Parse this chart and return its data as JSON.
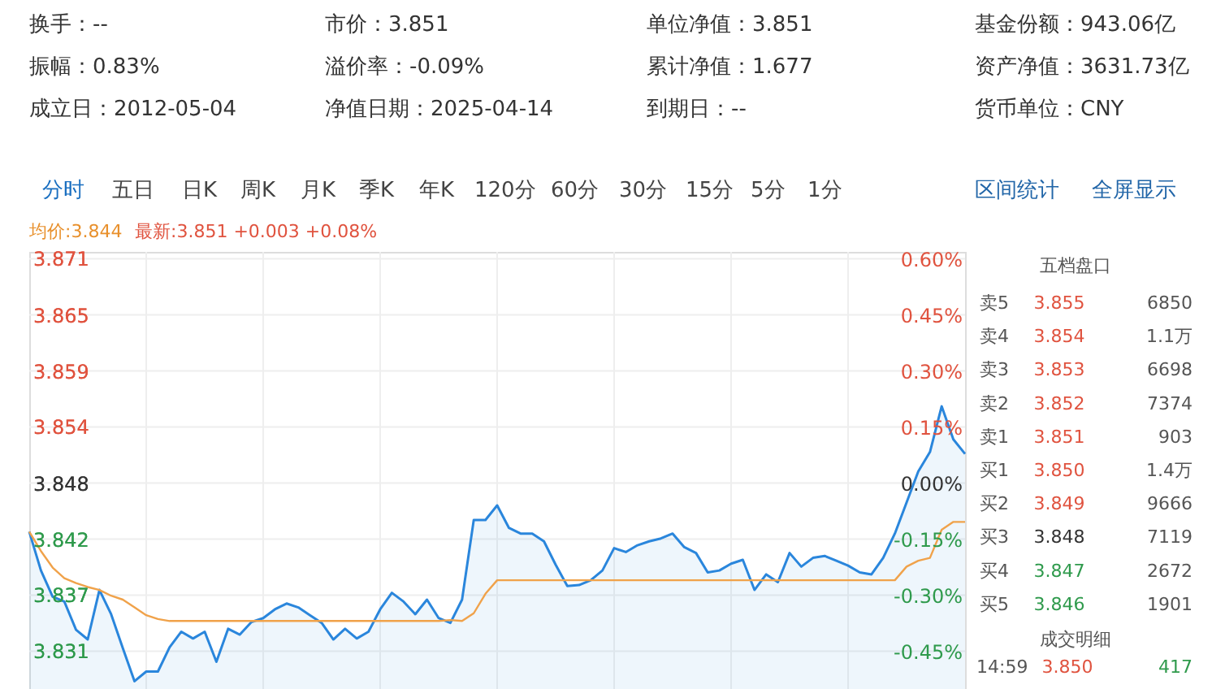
{
  "chart_data": {
    "type": "line",
    "categories": [
      null,
      null,
      null,
      null,
      null,
      null,
      null,
      null,
      null,
      null,
      null,
      null,
      null,
      null,
      null,
      null,
      null,
      null,
      null,
      null,
      null,
      null,
      null,
      null,
      null,
      null,
      null,
      null,
      null,
      null,
      null,
      null,
      null,
      null,
      null,
      null,
      null,
      null,
      null,
      null,
      null,
      null,
      null,
      null,
      null,
      null,
      null,
      null,
      null,
      null,
      null,
      null,
      null,
      null,
      null,
      null,
      null,
      null,
      null,
      null,
      null,
      null,
      null,
      null,
      null,
      null,
      null,
      null,
      null,
      null,
      null,
      null,
      null,
      null,
      null,
      null,
      null,
      null,
      null,
      null,
      null
    ],
    "series": [
      {
        "type": "area",
        "color": "#2a86dc",
        "values": [
          3.843,
          3.839,
          3.8363,
          3.8358,
          3.8329,
          3.8319,
          3.837,
          3.8345,
          3.831,
          3.8276,
          3.8286,
          3.8286,
          3.8311,
          3.8327,
          3.832,
          3.8327,
          3.8296,
          3.833,
          3.8324,
          3.8337,
          3.8341,
          3.835,
          3.8356,
          3.8352,
          3.8344,
          3.8336,
          3.8319,
          3.833,
          3.832,
          3.8327,
          3.835,
          3.8367,
          3.8358,
          3.8345,
          3.836,
          3.8341,
          3.8336,
          3.836,
          3.8442,
          3.8442,
          3.8457,
          3.8434,
          3.8428,
          3.8428,
          3.842,
          3.8396,
          3.8374,
          3.8375,
          3.838,
          3.839,
          3.8413,
          3.8409,
          3.8416,
          3.842,
          3.8423,
          3.8428,
          3.8414,
          3.8408,
          3.8388,
          3.839,
          3.8397,
          3.8401,
          3.837,
          3.8386,
          3.8378,
          3.8408,
          3.8394,
          3.8403,
          3.8405,
          3.84,
          3.8395,
          3.8388,
          3.8386,
          3.8403,
          3.8428,
          3.846,
          3.8492,
          3.8512,
          3.8559,
          3.8525,
          3.851
        ]
      },
      {
        "color": "#f0a24a",
        "values": [
          3.843,
          3.841,
          3.8393,
          3.8382,
          3.8377,
          3.8373,
          3.837,
          3.8364,
          3.836,
          3.8352,
          3.8344,
          3.834,
          3.8338,
          3.8338,
          3.8338,
          3.8338,
          3.8338,
          3.8338,
          3.8338,
          3.8338,
          3.8338,
          3.8338,
          3.8338,
          3.8338,
          3.8338,
          3.8338,
          3.8338,
          3.8338,
          3.8338,
          3.8338,
          3.8338,
          3.8338,
          3.8338,
          3.8338,
          3.8338,
          3.8338,
          3.8339,
          3.8338,
          3.8346,
          3.8366,
          3.838,
          3.838,
          3.838,
          3.838,
          3.838,
          3.838,
          3.838,
          3.838,
          3.838,
          3.838,
          3.838,
          3.838,
          3.838,
          3.838,
          3.838,
          3.838,
          3.838,
          3.838,
          3.838,
          3.838,
          3.838,
          3.838,
          3.838,
          3.838,
          3.838,
          3.838,
          3.838,
          3.838,
          3.838,
          3.838,
          3.838,
          3.838,
          3.838,
          3.838,
          3.838,
          3.8394,
          3.84,
          3.8403,
          3.8432,
          3.844,
          3.844
        ]
      }
    ],
    "ylim": [
      3.8268,
      3.8718
    ],
    "yticks": [
      {
        "value": 3.8307,
        "label": "3.831"
      },
      {
        "value": 3.8365,
        "label": "3.837"
      },
      {
        "value": 3.8422,
        "label": "3.842"
      },
      {
        "value": 3.848,
        "label": "3.848"
      },
      {
        "value": 3.8538,
        "label": "3.854"
      },
      {
        "value": 3.8595,
        "label": "3.859"
      },
      {
        "value": 3.8653,
        "label": "3.865"
      },
      {
        "value": 3.8711,
        "label": "3.871"
      }
    ],
    "y2lim": [
      -0.551,
      0.6185
    ],
    "y2ticks": [
      {
        "value": -0.45,
        "label": "-0.45%"
      },
      {
        "value": -0.3,
        "label": "-0.30%"
      },
      {
        "value": -0.15,
        "label": "-0.15%"
      },
      {
        "value": 0,
        "label": "0.00%"
      },
      {
        "value": 0.15,
        "label": "0.15%"
      },
      {
        "value": 0.3,
        "label": "0.30%"
      },
      {
        "value": 0.45,
        "label": "0.45%"
      },
      {
        "value": 0.6,
        "label": "0.60%"
      }
    ],
    "grid": true,
    "tick_labels": "y",
    "annotations": [
      "换手：--",
      "市价：3.851",
      "单位净值：3.851",
      "基金份额：943.06亿",
      "振幅：0.83%",
      "溢价率：-0.09%",
      "累计净值：1.677",
      "资产净值：3631.73亿",
      "成立日：2012-05-04",
      "净值日期：2025-04-14",
      "到期日：--",
      "货币单位：CNY",
      "分时",
      "五日",
      "日K",
      "周K",
      "月K",
      "季K",
      "年K",
      "120分",
      "60分",
      "30分",
      "15分",
      "5分",
      "1分",
      "区间统计",
      "全屏显示",
      "均价:3.844",
      "最新:3.851 +0.003 +0.08%",
      "五档盘口",
      "卖5",
      "3.855",
      "6850",
      "卖4",
      "3.854",
      "1.1万",
      "卖3",
      "3.853",
      "6698",
      "卖2",
      "3.852",
      "7374",
      "卖1",
      "3.851",
      "903",
      "买1",
      "3.850",
      "1.4万",
      "买2",
      "3.849",
      "9666",
      "买3",
      "3.848",
      "7119",
      "买4",
      "3.847",
      "2672",
      "买5",
      "3.846",
      "1901",
      "成交明细",
      "14:59",
      "3.850",
      "417"
    ]
  }
}
